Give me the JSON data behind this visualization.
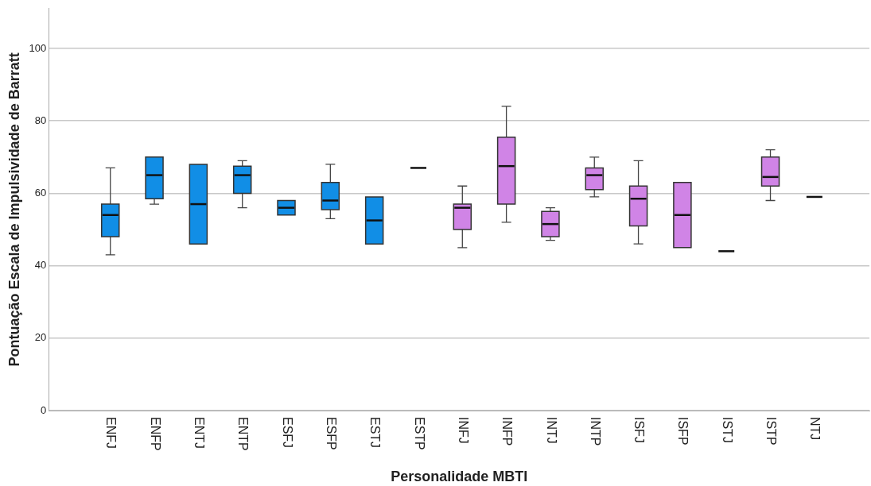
{
  "chart_data": {
    "type": "box",
    "xlabel": "Personalidade MBTI",
    "ylabel": "Pontuação Escala de Impulsividade de Barratt",
    "categories": [
      "ENFJ",
      "ENFP",
      "ENTJ",
      "ENTP",
      "ESFJ",
      "ESFP",
      "ESTJ",
      "ESTP",
      "INFJ",
      "INFP",
      "INTJ",
      "INTP",
      "ISFJ",
      "ISFP",
      "ISTJ",
      "ISTP",
      "NTJ"
    ],
    "boxes": [
      {
        "low": 43,
        "q1": 48,
        "median": 54,
        "q3": 57,
        "high": 67
      },
      {
        "low": 57,
        "q1": 58.5,
        "median": 65,
        "q3": 70,
        "high": 70
      },
      {
        "low": 46,
        "q1": 46,
        "median": 57,
        "q3": 68,
        "high": 68
      },
      {
        "low": 56,
        "q1": 60,
        "median": 65,
        "q3": 67.5,
        "high": 69
      },
      {
        "low": 54,
        "q1": 54,
        "median": 56,
        "q3": 58,
        "high": 58
      },
      {
        "low": 53,
        "q1": 55.5,
        "median": 58,
        "q3": 63,
        "high": 68
      },
      {
        "low": 46,
        "q1": 46,
        "median": 52.5,
        "q3": 59,
        "high": 59
      },
      {
        "low": 67,
        "q1": 67,
        "median": 67,
        "q3": 67,
        "high": 67
      },
      {
        "low": 45,
        "q1": 50,
        "median": 56,
        "q3": 57,
        "high": 62
      },
      {
        "low": 52,
        "q1": 57,
        "median": 67.5,
        "q3": 75.5,
        "high": 84
      },
      {
        "low": 47,
        "q1": 48,
        "median": 51.5,
        "q3": 55,
        "high": 56
      },
      {
        "low": 59,
        "q1": 61,
        "median": 65,
        "q3": 67,
        "high": 70
      },
      {
        "low": 46,
        "q1": 51,
        "median": 58.5,
        "q3": 62,
        "high": 69
      },
      {
        "low": 45,
        "q1": 45,
        "median": 54,
        "q3": 63,
        "high": 63
      },
      {
        "low": 44,
        "q1": 44,
        "median": 44,
        "q3": 44,
        "high": 44
      },
      {
        "low": 58,
        "q1": 62,
        "median": 64.5,
        "q3": 70,
        "high": 72
      },
      {
        "low": 59,
        "q1": 59,
        "median": 59,
        "q3": 59,
        "high": 59
      }
    ],
    "colors": [
      "#118ee6",
      "#118ee6",
      "#118ee6",
      "#118ee6",
      "#118ee6",
      "#118ee6",
      "#118ee6",
      null,
      "#d084e6",
      "#d084e6",
      "#d084e6",
      "#d084e6",
      "#d084e6",
      "#d084e6",
      null,
      "#d084e6",
      null
    ],
    "ylim": [
      0,
      111
    ],
    "yticks": [
      0,
      20,
      40,
      60,
      80,
      100
    ],
    "grid": "y",
    "legend": false
  }
}
